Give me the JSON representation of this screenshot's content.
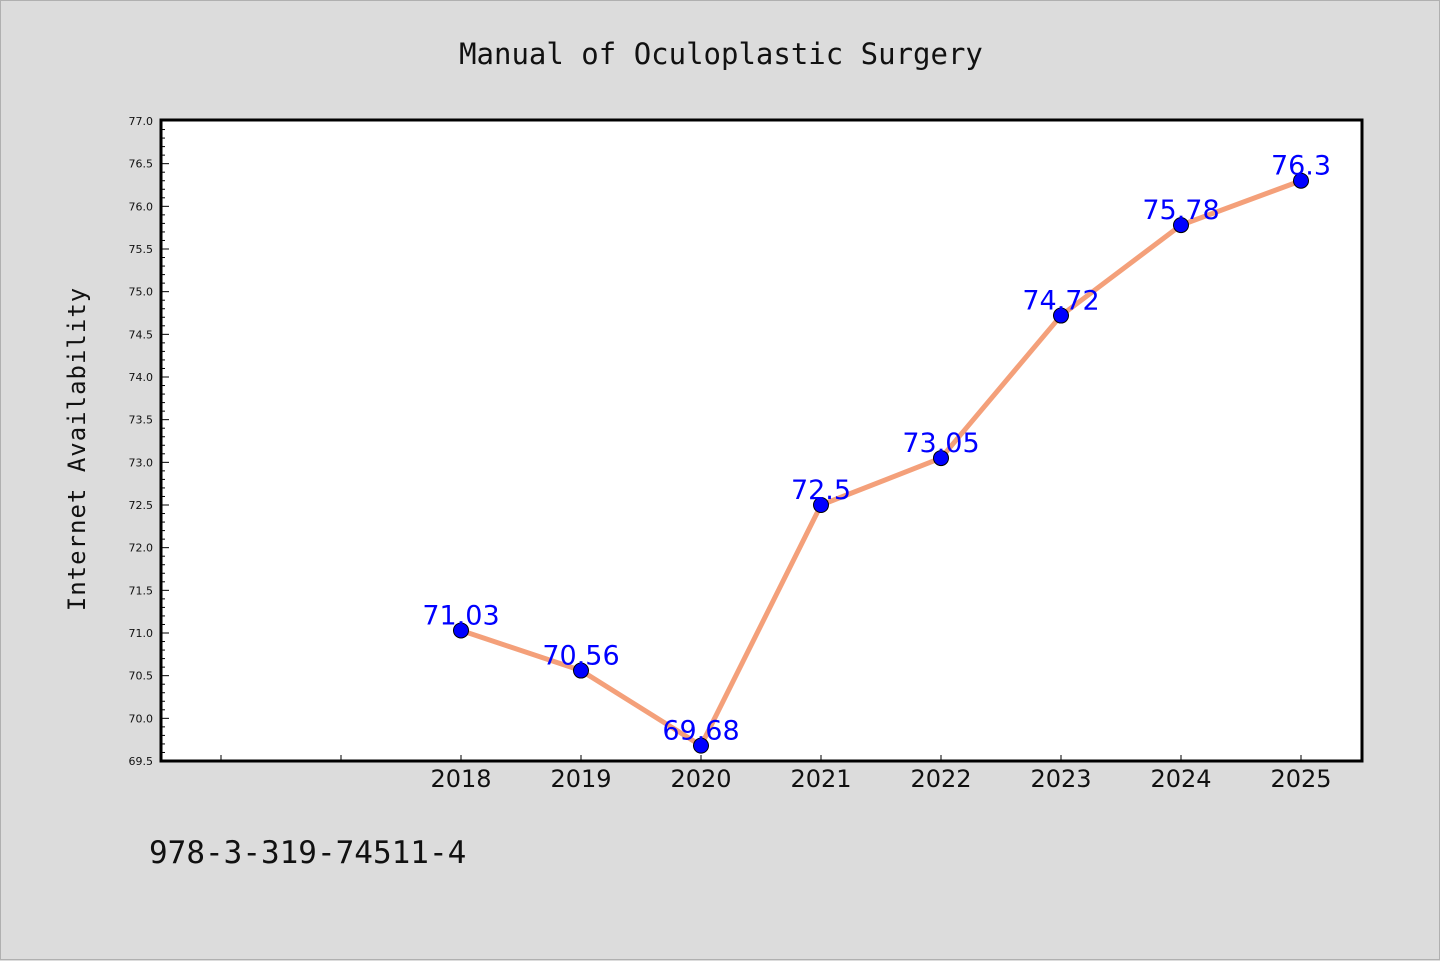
{
  "chart_data": {
    "type": "line",
    "title": "Manual of Oculoplastic Surgery",
    "xlabel": "",
    "ylabel": "Internet Availability",
    "categories": [
      "2018",
      "2019",
      "2020",
      "2021",
      "2022",
      "2023",
      "2024",
      "2025"
    ],
    "values": [
      71.03,
      70.56,
      69.68,
      72.5,
      73.05,
      74.72,
      75.78,
      76.3
    ],
    "data_labels": [
      "71.03",
      "70.56",
      "69.68",
      "72.5",
      "73.05",
      "74.72",
      "75.78",
      "76.3"
    ],
    "ylim": [
      69.5,
      77.0
    ],
    "y_ticks": [
      "69.5",
      "70.0",
      "70.5",
      "71.0",
      "71.5",
      "72.0",
      "72.5",
      "73.0",
      "73.5",
      "74.0",
      "74.5",
      "75.0",
      "75.5",
      "76.0",
      "76.5",
      "77.0"
    ],
    "grid": false,
    "legend": "none",
    "line_color": "#f4a07a",
    "marker_color": "#0000ff",
    "label_color": "#0000ff"
  },
  "footer": {
    "isbn": "978-3-319-74511-4"
  }
}
